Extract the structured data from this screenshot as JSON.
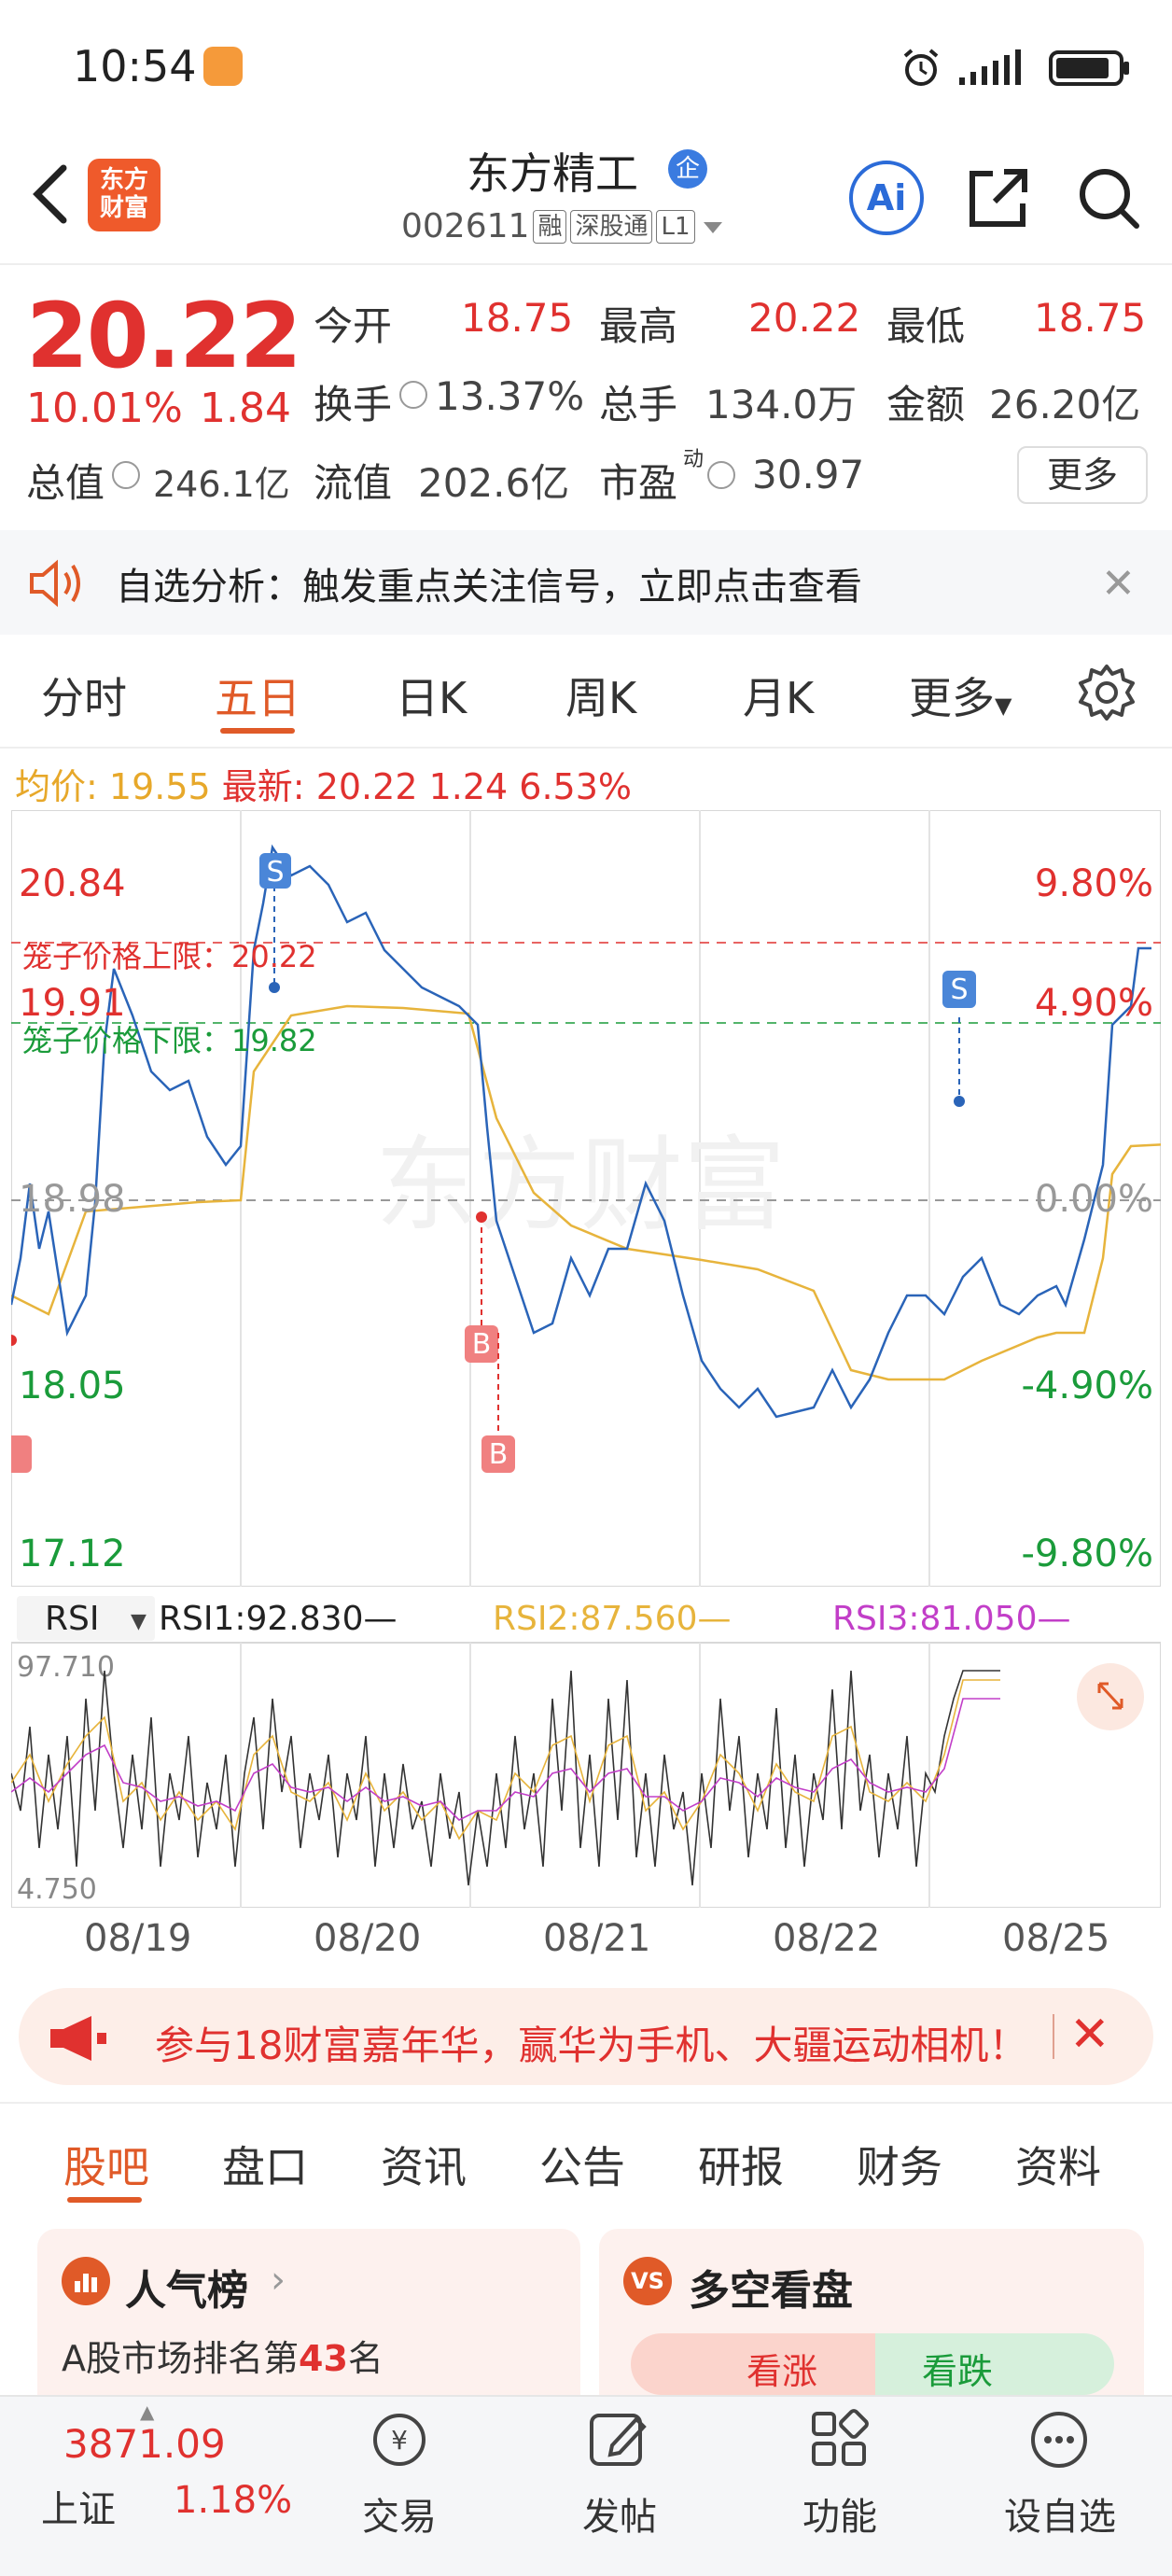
{
  "status_bar": {
    "time": "10:54"
  },
  "header": {
    "app_logo_line1": "东方",
    "app_logo_line2": "财富",
    "stock_name": "东方精工",
    "stock_name_badge": "企",
    "stock_code": "002611",
    "tags": [
      "融",
      "深股通",
      "L1"
    ],
    "ai_label": "Ai"
  },
  "quote": {
    "price": "20.22",
    "change_pct": "10.01%",
    "change_val": "1.84",
    "open_label": "今开",
    "open": "18.75",
    "high_label": "最高",
    "high": "20.22",
    "low_label": "最低",
    "low": "18.75",
    "turnover_label": "换手",
    "turnover": "13.37%",
    "volume_label": "总手",
    "volume": "134.0万",
    "amount_label": "金额",
    "amount": "26.20亿",
    "mktcap_label": "总值",
    "mktcap": "246.1亿",
    "float_label": "流值",
    "float": "202.6亿",
    "pe_label": "市盈",
    "pe_sup": "动",
    "pe": "30.97",
    "more_label": "更多"
  },
  "alert": {
    "text": "自选分析：触发重点关注信号，立即点击查看"
  },
  "chart_tabs": [
    "分时",
    "五日",
    "日K",
    "周K",
    "月K",
    "更多"
  ],
  "info_line": {
    "avg_label": "均价:",
    "avg": "19.55",
    "latest_label": "最新:",
    "latest": "20.22",
    "latest_change": "1.24",
    "latest_pct": "6.53%"
  },
  "chart_data": {
    "type": "line",
    "y_left_ticks": [
      "20.84",
      "19.91",
      "18.98",
      "18.05",
      "17.12"
    ],
    "y_right_ticks": [
      "9.80%",
      "4.90%",
      "0.00%",
      "-4.90%",
      "-9.80%"
    ],
    "ylim": [
      17.12,
      20.84
    ],
    "annotations": {
      "cage_upper": "笼子价格上限：20.22",
      "cage_lower": "笼子价格下限：19.82"
    },
    "markers": [
      "S",
      "B",
      "B",
      "S"
    ],
    "watermark": "东方财富",
    "dates": [
      "08/19",
      "08/20",
      "08/21",
      "08/22",
      "08/25"
    ],
    "series": [
      {
        "name": "价格",
        "color": "#2a64b8"
      },
      {
        "name": "均价",
        "color": "#e7b43c"
      }
    ]
  },
  "rsi": {
    "selector": "RSI",
    "rsi1": "RSI1:92.830—",
    "rsi2": "RSI2:87.560—",
    "rsi3": "RSI3:81.050—",
    "max": "97.710",
    "min": "4.750"
  },
  "promo": {
    "text": "参与18财富嘉年华，赢华为手机、大疆运动相机！"
  },
  "section_tabs": [
    "股吧",
    "盘口",
    "资讯",
    "公告",
    "研报",
    "财务",
    "资料"
  ],
  "card_left": {
    "title": "人气榜",
    "sub_prefix": "A股市场排名第",
    "rank": "43",
    "sub_suffix": "名"
  },
  "card_right": {
    "title": "多空看盘",
    "bull": "看涨",
    "bear": "看跌"
  },
  "bottom_nav": {
    "index_value": "3871.09",
    "index_name": "上证",
    "index_pct": "1.18%",
    "trade": "交易",
    "post": "发帖",
    "functions": "功能",
    "watchlist": "设自选"
  }
}
